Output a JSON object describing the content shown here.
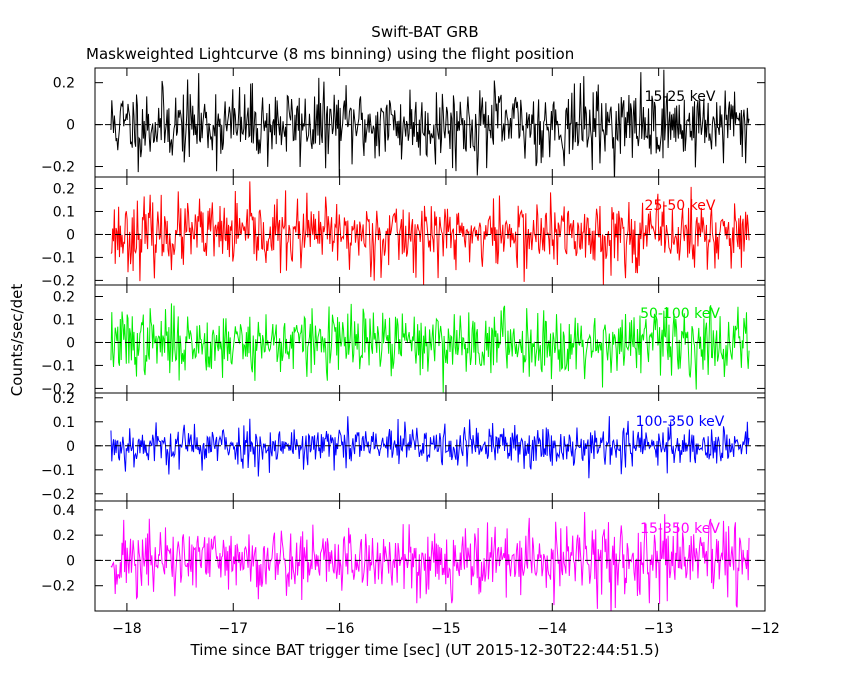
{
  "figure": {
    "title": "Swift-BAT GRB",
    "subtitle": "Maskweighted Lightcurve (8 ms binning) using the flight position",
    "xlabel": "Time since BAT trigger time [sec] (UT 2015-12-30T22:44:51.5)",
    "ylabel": "Counts/sec/det"
  },
  "chart_data": [
    {
      "type": "line",
      "series": [
        {
          "name": "15-25 keV",
          "color": "#000000"
        }
      ],
      "annotation": "15-25 keV",
      "x_range": [
        -18.15,
        -12.15
      ],
      "xlim": [
        -18.3,
        -12.0
      ],
      "ylim": [
        -0.25,
        0.27
      ],
      "yticks": [
        0.2,
        0,
        -0.2
      ],
      "ytick_labels": [
        "0.2",
        "0",
        "−0.2"
      ],
      "amplitude": 0.09,
      "samples": 750,
      "seed": 11
    },
    {
      "type": "line",
      "series": [
        {
          "name": "25-50 keV",
          "color": "#ff0000"
        }
      ],
      "annotation": "25-50 keV",
      "x_range": [
        -18.15,
        -12.15
      ],
      "xlim": [
        -18.3,
        -12.0
      ],
      "ylim": [
        -0.22,
        0.25
      ],
      "yticks": [
        0.2,
        0.1,
        0,
        -0.1,
        -0.2
      ],
      "ytick_labels": [
        "0.2",
        "0.1",
        "0",
        "−0.1",
        "−0.2"
      ],
      "amplitude": 0.075,
      "samples": 750,
      "seed": 23
    },
    {
      "type": "line",
      "series": [
        {
          "name": "50-100 keV",
          "color": "#00ee00"
        }
      ],
      "annotation": "50-100 keV",
      "x_range": [
        -18.15,
        -12.15
      ],
      "xlim": [
        -18.3,
        -12.0
      ],
      "ylim": [
        -0.22,
        0.25
      ],
      "yticks": [
        0.2,
        0.1,
        0,
        -0.1,
        -0.2
      ],
      "ytick_labels": [
        "0.2",
        "0.1",
        "0",
        "−0.1",
        "−0.2"
      ],
      "amplitude": 0.07,
      "samples": 750,
      "seed": 37
    },
    {
      "type": "line",
      "series": [
        {
          "name": "100-350 keV",
          "color": "#0000ff"
        }
      ],
      "annotation": "100-350 keV",
      "x_range": [
        -18.15,
        -12.15
      ],
      "xlim": [
        -18.3,
        -12.0
      ],
      "ylim": [
        -0.23,
        0.22
      ],
      "yticks": [
        0.2,
        0.1,
        0,
        -0.1,
        -0.2
      ],
      "ytick_labels": [
        "0.2",
        "0.1",
        "0",
        "−0.1",
        "−0.2"
      ],
      "amplitude": 0.045,
      "samples": 750,
      "seed": 53
    },
    {
      "type": "line",
      "series": [
        {
          "name": "15-350 keV",
          "color": "#ff00ff"
        }
      ],
      "annotation": "15-350 keV",
      "x_range": [
        -18.15,
        -12.15
      ],
      "xlim": [
        -18.3,
        -12.0
      ],
      "ylim": [
        -0.4,
        0.47
      ],
      "yticks": [
        0.4,
        0.2,
        0,
        -0.2
      ],
      "ytick_labels": [
        "0.4",
        "0.2",
        "0",
        "−0.2"
      ],
      "amplitude": 0.14,
      "samples": 750,
      "seed": 71
    }
  ],
  "xaxis": {
    "ticks": [
      -18,
      -17,
      -16,
      -15,
      -14,
      -13,
      -12
    ],
    "tick_labels": [
      "−18",
      "−17",
      "−16",
      "−15",
      "−14",
      "−13",
      "−12"
    ]
  }
}
